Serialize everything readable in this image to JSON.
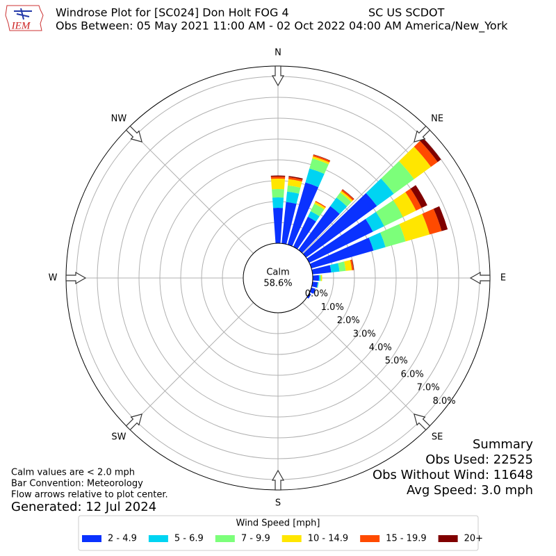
{
  "logo_text": "IEM",
  "chart_data": {
    "type": "windrose",
    "title": "Windrose Plot for [SC024] Don Holt FOG 4",
    "network": "SC US SCDOT",
    "subtitle": "Obs Between: 05 May 2021 11:00 AM - 02 Oct 2022 04:00 AM America/New_York",
    "x": [
      0,
      10,
      20,
      30,
      40,
      50,
      60,
      70,
      80,
      90,
      100,
      110,
      120,
      130,
      140,
      150,
      160,
      170,
      180,
      190,
      200,
      210,
      220,
      230,
      240,
      250,
      260,
      270,
      280,
      290,
      300,
      310,
      320,
      330,
      340,
      350
    ],
    "compass_labels": [
      "N",
      "NE",
      "E",
      "SE",
      "S",
      "SW",
      "W",
      "NW"
    ],
    "rlim": [
      0,
      8.5
    ],
    "rticks": [
      {
        "value": 0,
        "label": "0.0%"
      },
      {
        "value": 1,
        "label": "1.0%"
      },
      {
        "value": 2,
        "label": "2.0%"
      },
      {
        "value": 3,
        "label": "3.0%"
      },
      {
        "value": 4,
        "label": "4.0%"
      },
      {
        "value": 5,
        "label": "5.0%"
      },
      {
        "value": 6,
        "label": "6.0%"
      },
      {
        "value": 7,
        "label": "7.0%"
      },
      {
        "value": 8,
        "label": "8.0%"
      }
    ],
    "grid": true,
    "calm_label": "Calm",
    "calm_value": 58.6,
    "calm_value_label": "58.6%",
    "legend_title": "Wind Speed [mph]",
    "series": [
      {
        "name": "2 - 4.9",
        "color": "#0a32ff",
        "values": [
          1.7,
          2.0,
          3.1,
          1.6,
          2.6,
          4.2,
          3.4,
          3.1,
          0.9,
          0.3,
          0.25,
          0.2,
          0.1,
          0,
          0,
          0,
          0,
          0,
          0,
          0,
          0,
          0,
          0,
          0,
          0,
          0,
          0,
          0,
          0,
          0,
          0,
          0,
          0,
          0,
          0,
          0
        ]
      },
      {
        "name": "5 - 6.9",
        "color": "#00d4f2",
        "values": [
          0.5,
          0.5,
          0.7,
          0.3,
          0.5,
          1.0,
          0.6,
          0.6,
          0.4,
          0.05,
          0.03,
          0,
          0,
          0,
          0,
          0,
          0,
          0,
          0,
          0,
          0,
          0,
          0,
          0,
          0,
          0,
          0,
          0,
          0,
          0,
          0,
          0,
          0,
          0,
          0,
          0
        ]
      },
      {
        "name": "7 - 9.9",
        "color": "#7cff7a",
        "values": [
          0.4,
          0.3,
          0.5,
          0.4,
          0.3,
          1.2,
          1.0,
          1.0,
          0.3,
          0.05,
          0.02,
          0,
          0,
          0,
          0,
          0,
          0,
          0,
          0,
          0,
          0,
          0,
          0,
          0,
          0,
          0,
          0,
          0,
          0,
          0,
          0,
          0,
          0,
          0,
          0,
          0
        ]
      },
      {
        "name": "10 - 14.9",
        "color": "#ffe600",
        "values": [
          0.5,
          0.3,
          0.1,
          0.1,
          0.1,
          1.0,
          0.7,
          1.2,
          0.3,
          0.05,
          0,
          0,
          0,
          0,
          0,
          0,
          0,
          0,
          0,
          0,
          0,
          0,
          0,
          0,
          0,
          0,
          0,
          0,
          0,
          0,
          0,
          0,
          0,
          0,
          0,
          0
        ]
      },
      {
        "name": "15 - 19.9",
        "color": "#ff4a00",
        "values": [
          0.1,
          0.1,
          0.08,
          0.05,
          0.08,
          0.4,
          0.3,
          0.6,
          0.08,
          0,
          0,
          0,
          0,
          0,
          0,
          0,
          0,
          0,
          0,
          0,
          0,
          0,
          0,
          0,
          0,
          0,
          0,
          0,
          0,
          0,
          0,
          0,
          0,
          0,
          0,
          0
        ]
      },
      {
        "name": "20+",
        "color": "#800000",
        "values": [
          0.05,
          0.05,
          0.02,
          0,
          0.02,
          0.2,
          0.3,
          0.3,
          0.02,
          0,
          0,
          0,
          0,
          0,
          0,
          0,
          0,
          0,
          0,
          0,
          0,
          0,
          0,
          0,
          0,
          0,
          0,
          0,
          0,
          0,
          0,
          0,
          0,
          0,
          0,
          0
        ]
      }
    ]
  },
  "notes": [
    "Calm values are < 2.0 mph",
    "Bar Convention: Meteorology",
    "Flow arrows relative to plot center."
  ],
  "generated": "Generated: 12 Jul 2024",
  "summary": [
    "Summary",
    "Obs Used: 22525",
    "Obs Without Wind: 11648",
    "Avg Speed: 3.0 mph"
  ]
}
